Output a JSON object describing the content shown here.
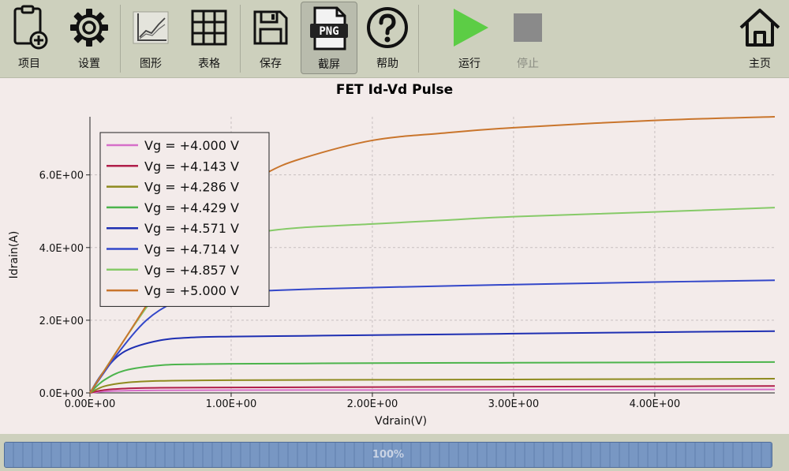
{
  "toolbar": {
    "items": [
      {
        "label": "项目",
        "icon": "project-add-icon"
      },
      {
        "label": "设置",
        "icon": "gear-icon"
      },
      {
        "label": "图形",
        "icon": "graph-icon"
      },
      {
        "label": "表格",
        "icon": "table-icon"
      },
      {
        "label": "保存",
        "icon": "save-icon"
      },
      {
        "label": "截屏",
        "icon": "png-screenshot-icon"
      },
      {
        "label": "帮助",
        "icon": "help-icon"
      },
      {
        "label": "运行",
        "icon": "play-icon"
      },
      {
        "label": "停止",
        "icon": "stop-icon"
      },
      {
        "label": "主页",
        "icon": "home-icon"
      }
    ],
    "colors": {
      "play": "#5ccd45",
      "stop": "#8a8a8a"
    }
  },
  "status": {
    "progress_text": "100%",
    "progress_value": 1.0
  },
  "chart_data": {
    "type": "line",
    "title": "FET Id-Vd Pulse",
    "xlabel": "Vdrain(V)",
    "ylabel": "Idrain(A)",
    "xlim": [
      0,
      4.85
    ],
    "ylim": [
      0,
      7.6
    ],
    "xticks": [
      0,
      1,
      2,
      3,
      4
    ],
    "xtick_labels": [
      "0.00E+00",
      "1.00E+00",
      "2.00E+00",
      "3.00E+00",
      "4.00E+00"
    ],
    "yticks": [
      0,
      2,
      4,
      6
    ],
    "ytick_labels": [
      "0.0E+00",
      "2.0E+00",
      "4.0E+00",
      "6.0E+00"
    ],
    "grid": true,
    "legend_position": "top-left",
    "series": [
      {
        "name": "Vg = +4.000 V",
        "color": "#d66fc9",
        "x": [
          0,
          0.1,
          0.25,
          0.5,
          1.0,
          2.0,
          3.0,
          4.0,
          4.85
        ],
        "y": [
          0,
          0.04,
          0.06,
          0.07,
          0.075,
          0.08,
          0.085,
          0.09,
          0.095
        ]
      },
      {
        "name": "Vg = +4.143 V",
        "color": "#b01e4a",
        "x": [
          0,
          0.1,
          0.25,
          0.5,
          1.0,
          2.0,
          3.0,
          4.0,
          4.85
        ],
        "y": [
          0,
          0.08,
          0.12,
          0.14,
          0.15,
          0.16,
          0.17,
          0.18,
          0.19
        ]
      },
      {
        "name": "Vg = +4.286 V",
        "color": "#8e8a1e",
        "x": [
          0,
          0.1,
          0.25,
          0.5,
          1.0,
          2.0,
          3.0,
          4.0,
          4.85
        ],
        "y": [
          0,
          0.18,
          0.28,
          0.33,
          0.35,
          0.36,
          0.37,
          0.38,
          0.39
        ]
      },
      {
        "name": "Vg = +4.429 V",
        "color": "#4cb44c",
        "x": [
          0,
          0.1,
          0.25,
          0.5,
          0.75,
          1.0,
          1.5,
          2.0,
          3.0,
          4.0,
          4.85
        ],
        "y": [
          0,
          0.35,
          0.62,
          0.76,
          0.79,
          0.8,
          0.81,
          0.82,
          0.83,
          0.84,
          0.85
        ]
      },
      {
        "name": "Vg = +4.571 V",
        "color": "#1e2fb2",
        "x": [
          0,
          0.1,
          0.25,
          0.5,
          0.75,
          1.0,
          1.5,
          2.0,
          3.0,
          4.0,
          4.85
        ],
        "y": [
          0,
          0.6,
          1.15,
          1.45,
          1.53,
          1.55,
          1.57,
          1.59,
          1.63,
          1.67,
          1.7
        ]
      },
      {
        "name": "Vg = +4.714 V",
        "color": "#3347c9",
        "x": [
          0,
          0.2,
          0.4,
          0.6,
          0.8,
          1.0,
          1.3,
          1.6,
          2.0,
          3.0,
          4.0,
          4.85
        ],
        "y": [
          0,
          1.1,
          2.0,
          2.5,
          2.7,
          2.77,
          2.82,
          2.86,
          2.9,
          2.98,
          3.05,
          3.1
        ]
      },
      {
        "name": "Vg = +4.857 V",
        "color": "#86ca68",
        "x": [
          0,
          0.25,
          0.5,
          0.75,
          1.0,
          1.25,
          1.5,
          2.0,
          2.5,
          3.0,
          4.0,
          4.85
        ],
        "y": [
          0,
          1.5,
          2.85,
          3.75,
          4.25,
          4.45,
          4.55,
          4.65,
          4.75,
          4.85,
          4.98,
          5.1
        ]
      },
      {
        "name": "Vg = +5.000 V",
        "color": "#c9752c",
        "x": [
          0,
          0.25,
          0.5,
          0.75,
          1.0,
          1.25,
          1.5,
          2.0,
          2.5,
          3.0,
          4.0,
          4.85
        ],
        "y": [
          0,
          1.5,
          3.0,
          4.35,
          5.4,
          6.05,
          6.45,
          6.95,
          7.15,
          7.3,
          7.5,
          7.6
        ]
      }
    ]
  }
}
